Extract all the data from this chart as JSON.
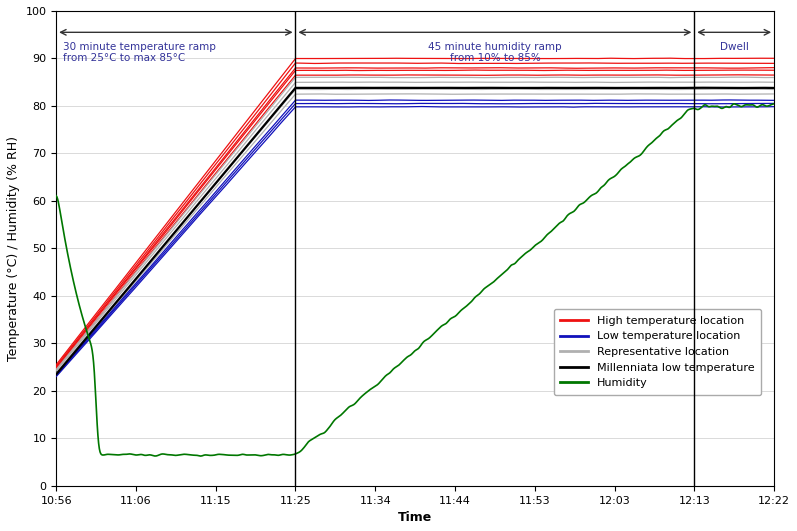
{
  "xlabel": "Time",
  "ylabel": "Temperature (°C) / Humidity (% RH)",
  "ylim": [
    0,
    100
  ],
  "yticks": [
    0,
    10,
    20,
    30,
    40,
    50,
    60,
    70,
    80,
    90,
    100
  ],
  "xtick_labels": [
    "10:56",
    "11:06",
    "11:15",
    "11:25",
    "11:34",
    "11:44",
    "11:53",
    "12:03",
    "12:13",
    "12:22"
  ],
  "annotation1": "30 minute temperature ramp\nfrom 25°C to max 85°C",
  "annotation2": "45 minute humidity ramp\nfrom 10% to 85%",
  "annotation3": "Dwell",
  "bg_color": "#ffffff",
  "legend_labels": [
    "High temperature location",
    "Low temperature location",
    "Representative location",
    "Millenniata low temperature",
    "Humidity"
  ],
  "legend_colors": [
    "#ff0000",
    "#000099",
    "#aaaaaa",
    "#000000",
    "#007700"
  ]
}
